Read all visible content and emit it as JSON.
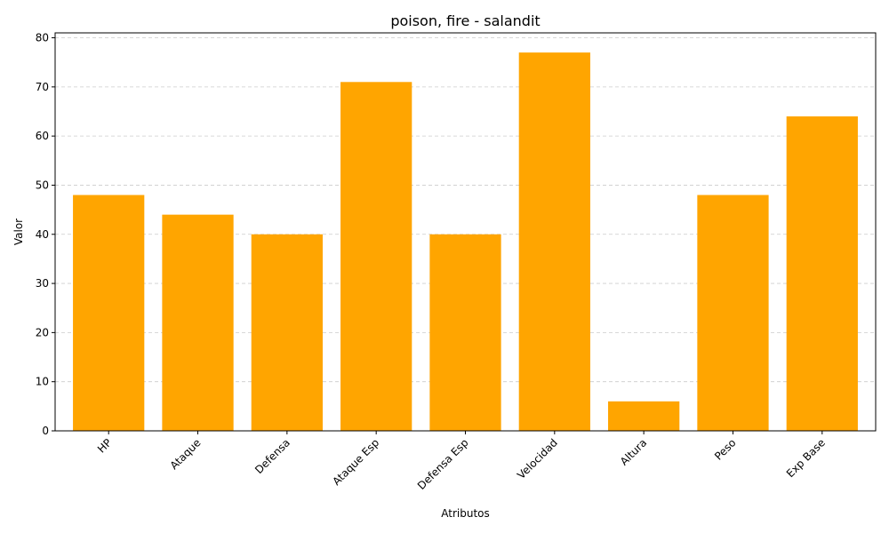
{
  "chart_data": {
    "type": "bar",
    "title": "poison, fire - salandit",
    "xlabel": "Atributos",
    "ylabel": "Valor",
    "categories": [
      "HP",
      "Ataque",
      "Defensa",
      "Ataque Esp",
      "Defensa Esp",
      "Velocidad",
      "Altura",
      "Peso",
      "Exp Base"
    ],
    "values": [
      48,
      44,
      40,
      71,
      40,
      77,
      6,
      48,
      64
    ],
    "ylim": [
      0,
      81
    ],
    "yticks": [
      "0",
      "10",
      "20",
      "30",
      "40",
      "50",
      "60",
      "70",
      "80"
    ],
    "grid": "y-dashed",
    "bar_color": "#FFA500",
    "xtick_rotation_deg": 45
  }
}
